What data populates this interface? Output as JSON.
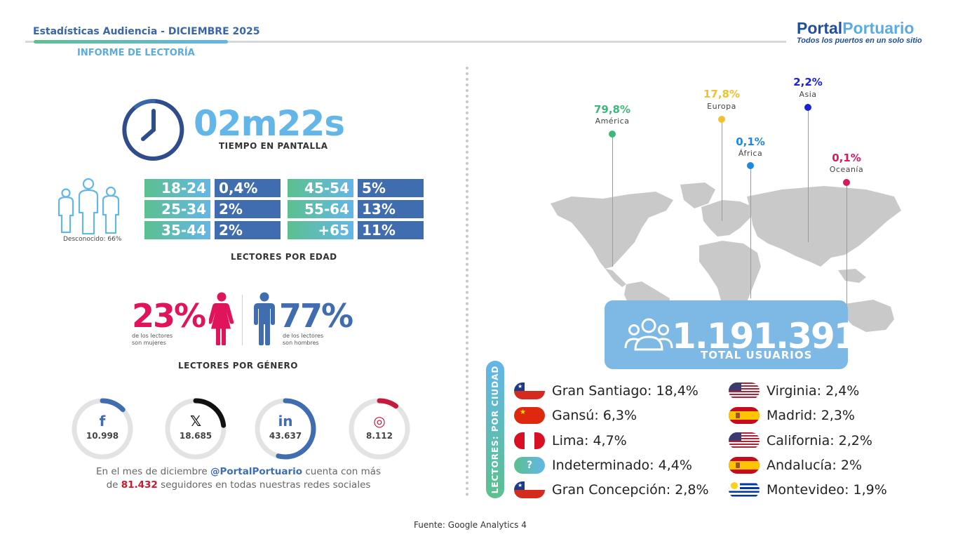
{
  "header": {
    "title": "Estadísticas Audiencia - DICIEMBRE 2025",
    "subtitle": "INFORME DE LECTORÍA",
    "logo_part1": "Portal",
    "logo_part2": "Portuario",
    "logo_tagline": "Todos los puertos en un solo sitio"
  },
  "time": {
    "value": "02m22s",
    "label": "TIEMPO EN PANTALLA"
  },
  "age": {
    "unknown": "Desconocido: 66%",
    "label": "LECTORES POR EDAD",
    "groups": [
      {
        "range": "18-24",
        "pct": "0,4%"
      },
      {
        "range": "25-34",
        "pct": "2%"
      },
      {
        "range": "35-44",
        "pct": "2%"
      },
      {
        "range": "45-54",
        "pct": "5%"
      },
      {
        "range": "55-64",
        "pct": "13%"
      },
      {
        "range": "+65",
        "pct": "11%"
      }
    ]
  },
  "gender": {
    "women_pct": "23%",
    "women_caption": "de los lectores son mujeres",
    "men_pct": "77%",
    "men_caption": "de los lectores son hombres",
    "label": "LECTORES POR GÉNERO"
  },
  "social": {
    "networks": [
      {
        "icon": "f",
        "name": "facebook-icon",
        "count": "10.998",
        "color": "#3f6db0",
        "fraction": 0.13
      },
      {
        "icon": "𝕏",
        "name": "x-icon",
        "count": "18.685",
        "color": "#111111",
        "fraction": 0.23
      },
      {
        "icon": "in",
        "name": "linkedin-icon",
        "count": "43.637",
        "color": "#3f6db0",
        "fraction": 0.54
      },
      {
        "icon": "◎",
        "name": "instagram-icon",
        "count": "8.112",
        "color": "#c8183c",
        "fraction": 0.1
      }
    ],
    "text_1": "En el mes de diciembre ",
    "handle": "@PortalPortuario",
    "text_2": " cuenta con más",
    "text_3": "de ",
    "total": "81.432",
    "text_4": " seguidores en todas nuestras redes sociales"
  },
  "continents": [
    {
      "pct": "79,8%",
      "name": "América",
      "color": "#3cb878"
    },
    {
      "pct": "17,8%",
      "name": "Europa",
      "color": "#f2c12e"
    },
    {
      "pct": "2,2%",
      "name": "Asia",
      "color": "#1a22d8"
    },
    {
      "pct": "0,1%",
      "name": "África",
      "color": "#1e88e5"
    },
    {
      "pct": "0,1%",
      "name": "Oceanía",
      "color": "#d81b60"
    }
  ],
  "total_users": {
    "value": "1.191.391",
    "label": "TOTAL USUARIOS"
  },
  "cities": {
    "title": "LECTORES: POR CIUDAD",
    "items": [
      {
        "text": "Gran Santiago: 18,4%",
        "flag": "chile"
      },
      {
        "text": "Gansú: 6,3%",
        "flag": "china"
      },
      {
        "text": "Lima: 4,7%",
        "flag": "peru"
      },
      {
        "text": "Indeterminado: 4,4%",
        "flag": "unknown"
      },
      {
        "text": "Gran Concepción: 2,8%",
        "flag": "chile"
      },
      {
        "text": "Virginia: 2,4%",
        "flag": "usa"
      },
      {
        "text": "Madrid: 2,3%",
        "flag": "spain"
      },
      {
        "text": "California: 2,2%",
        "flag": "usa"
      },
      {
        "text": "Andalucía: 2%",
        "flag": "spain"
      },
      {
        "text": "Montevideo: 1,9%",
        "flag": "uruguay"
      }
    ]
  },
  "source": "Fuente: Google Analytics 4"
}
